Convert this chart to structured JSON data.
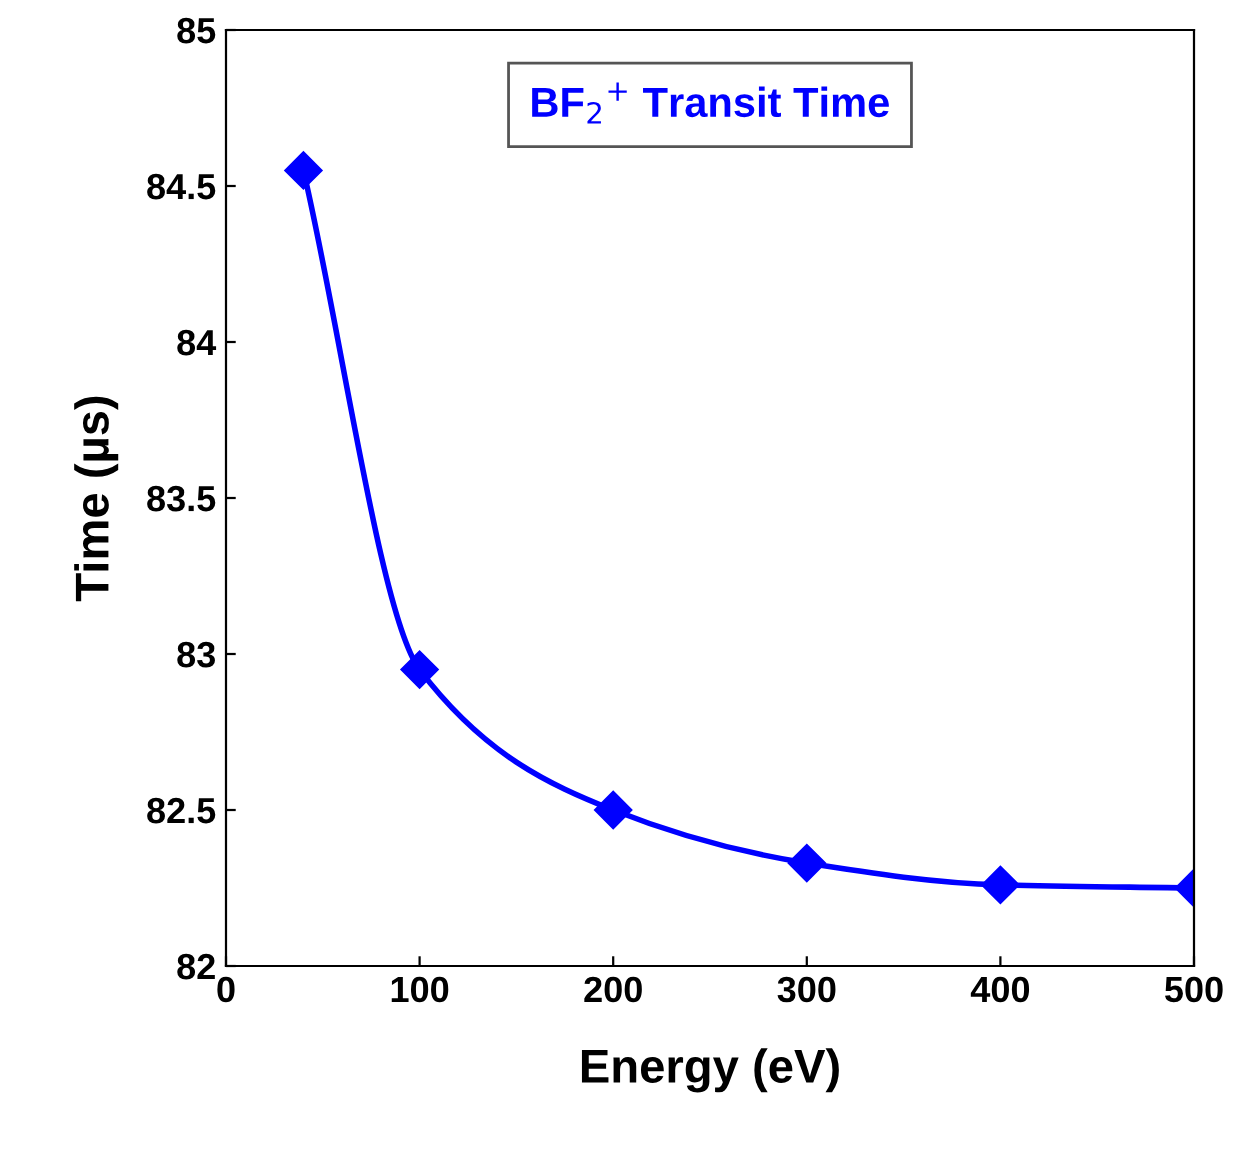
{
  "chart_data": {
    "type": "line",
    "title": "BF$_{2}$$^{+}$ Transit Time",
    "xlabel": "Energy (eV)",
    "ylabel": "Time (µs)",
    "x": [
      40,
      100,
      200,
      300,
      400,
      500
    ],
    "series": [
      {
        "color": "#0000ff",
        "values": [
          84.55,
          82.95,
          82.5,
          82.33,
          82.26,
          82.25
        ]
      }
    ],
    "xlim": [
      0,
      500
    ],
    "xticks": [
      0,
      100,
      200,
      300,
      400,
      500
    ],
    "ylim": [
      82,
      85
    ],
    "yticks": [
      82,
      82.5,
      83,
      83.5,
      84,
      84.5,
      85
    ],
    "grid": false,
    "legend": false,
    "marker": "diamond",
    "line_style": "solid"
  }
}
